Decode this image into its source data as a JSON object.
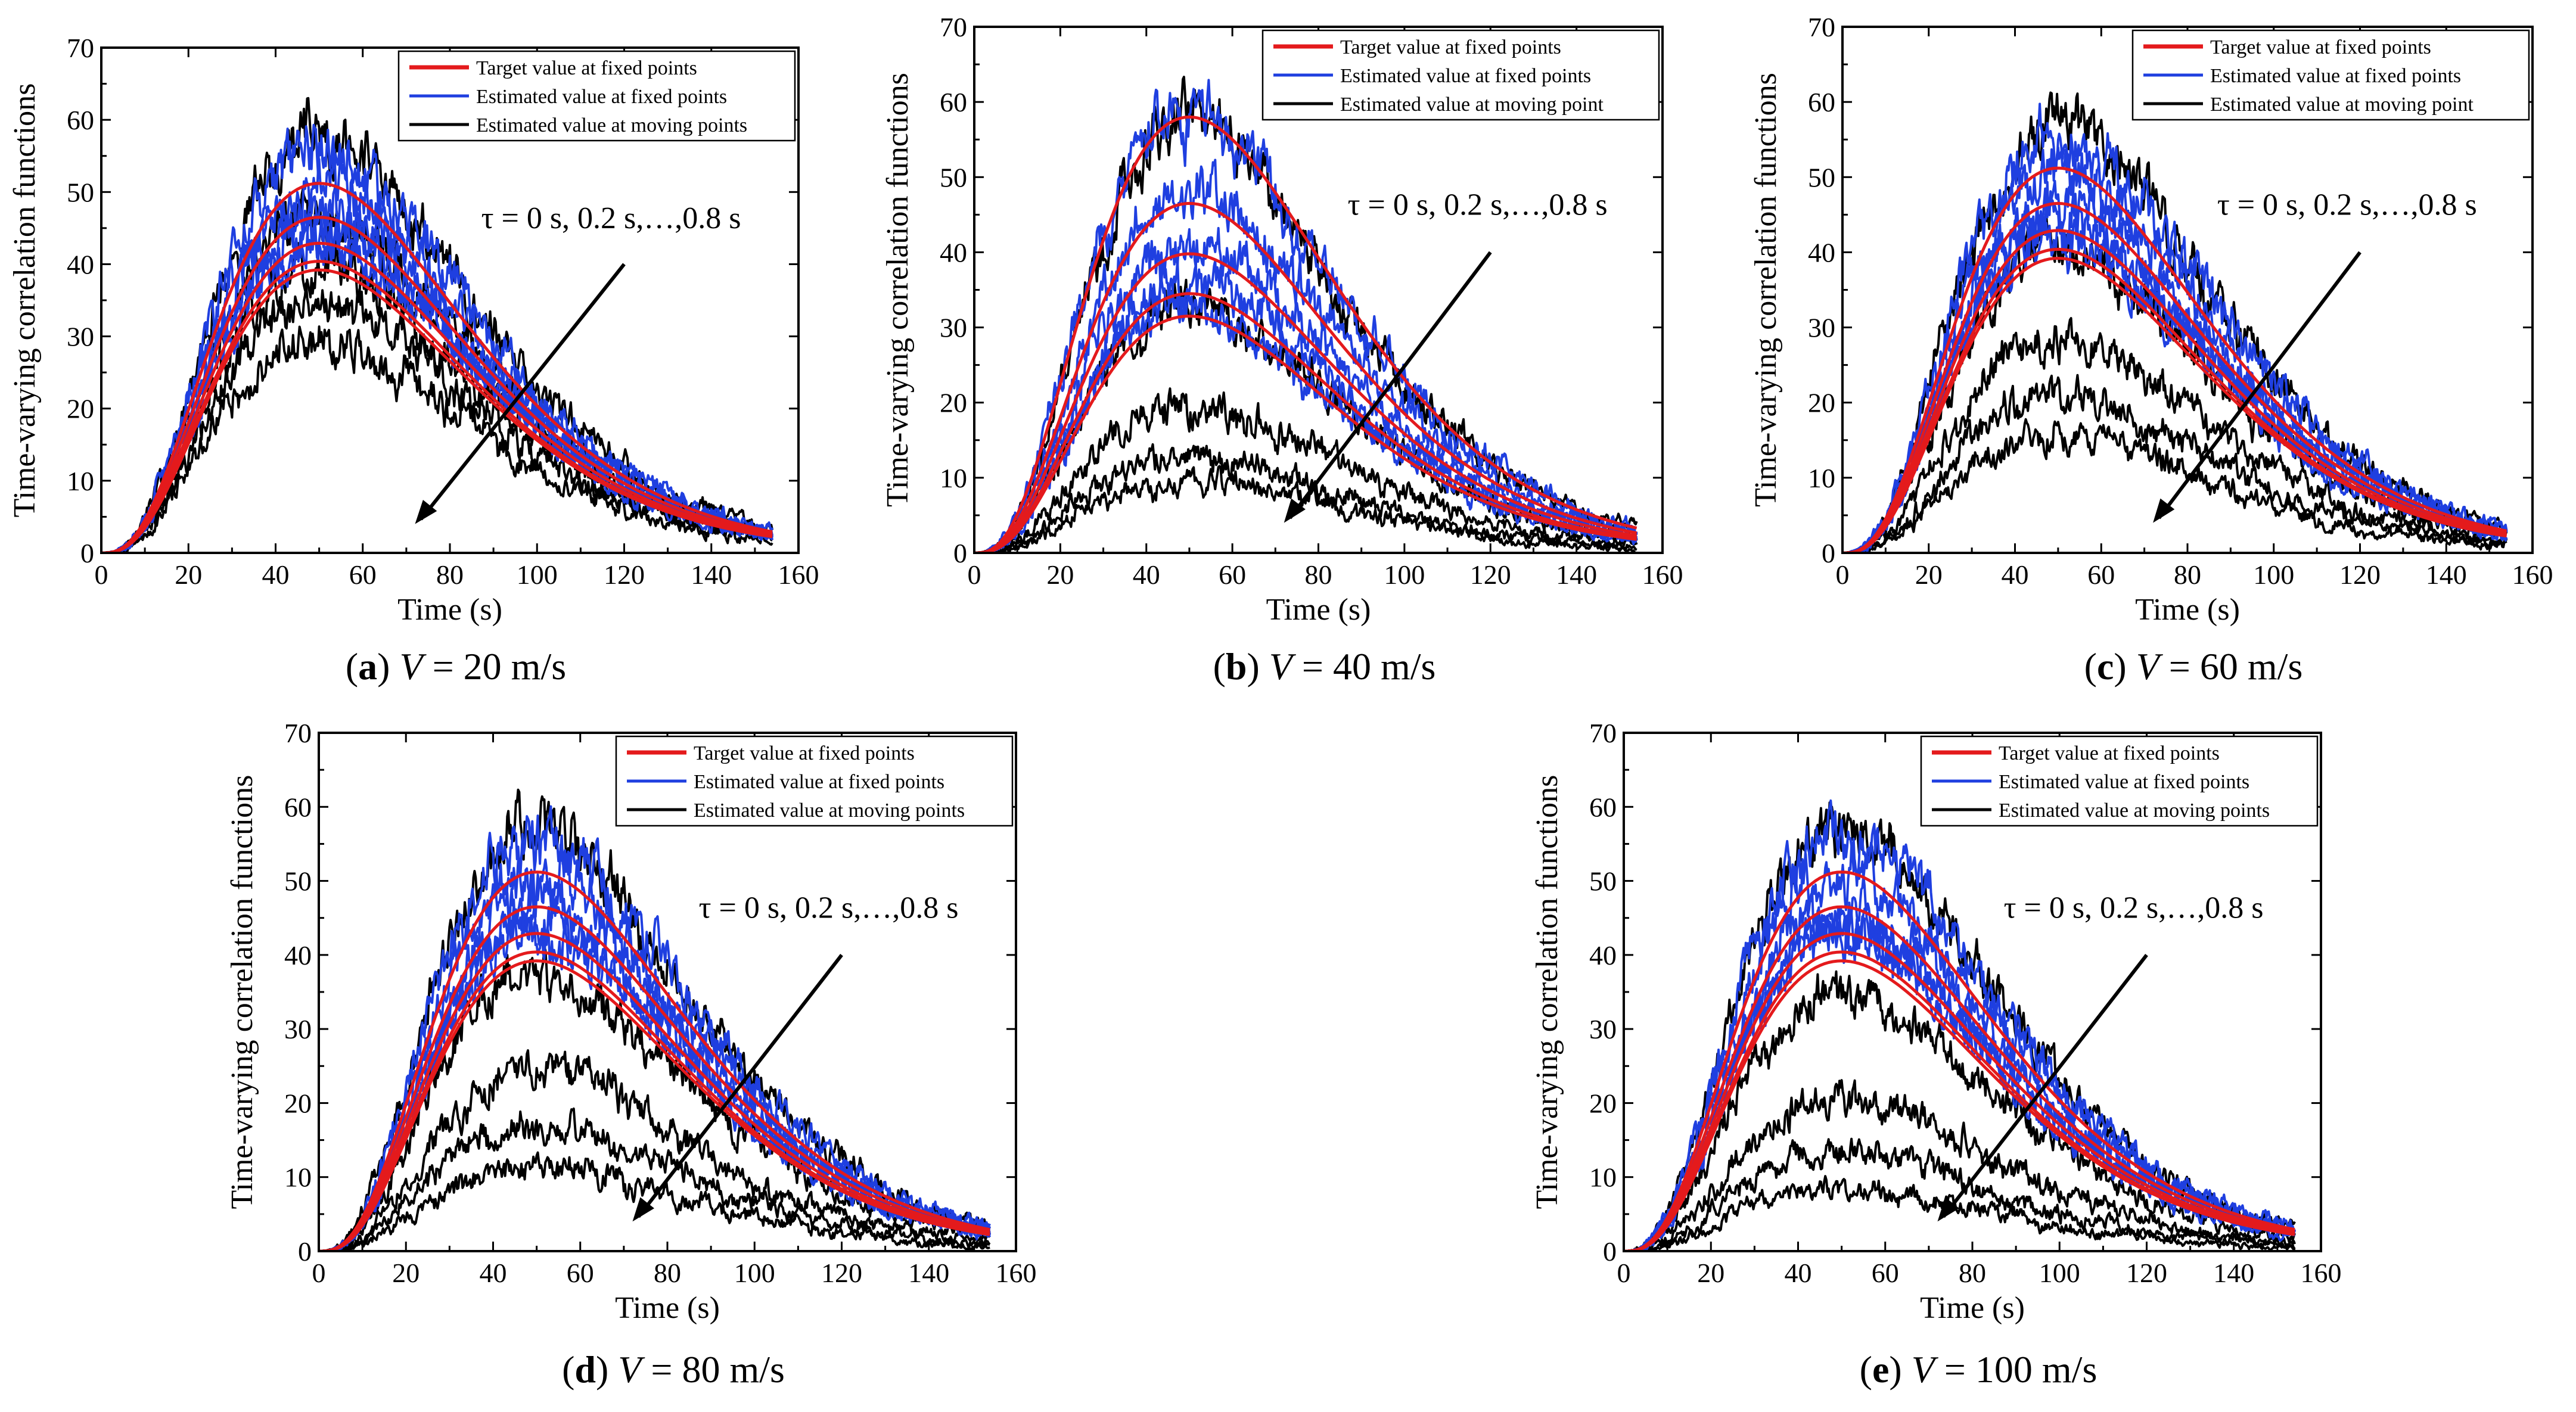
{
  "chart_data": [
    {
      "id": "a",
      "type": "line",
      "caption_letter": "a",
      "caption_var": "V",
      "caption_rest": " = 20 m/s",
      "xlabel": "Time (s)",
      "ylabel": "Time-varying correlation functions",
      "xlim": [
        0,
        160
      ],
      "ylim": [
        0,
        70
      ],
      "xticks": [
        "0",
        "20",
        "40",
        "60",
        "80",
        "100",
        "120",
        "140",
        "160"
      ],
      "yticks": [
        "0",
        "10",
        "20",
        "30",
        "40",
        "50",
        "60",
        "70"
      ],
      "legend": [
        "Target value at fixed points",
        "Estimated value at fixed points",
        "Estimated value at moving points"
      ],
      "annotation": "τ = 0 s, 0.2 s,…,0.8 s",
      "x_end": 154,
      "series": [
        {
          "name": "Target value at fixed points",
          "color": "#e41a1c",
          "peaks": [
            51.2,
            46.5,
            42.9,
            40.4,
            39.2
          ],
          "noise": 0
        },
        {
          "name": "Estimated value at fixed points",
          "color": "#1f3fe0",
          "peaks": [
            55.8,
            51.5,
            47.3,
            44.4,
            42.8
          ],
          "noise": 3
        },
        {
          "name": "Estimated value at moving points",
          "color": "#000000",
          "peaks": [
            57.5,
            46.5,
            40.0,
            35.0,
            29.5
          ],
          "noise": 3
        }
      ]
    },
    {
      "id": "b",
      "type": "line",
      "caption_letter": "b",
      "caption_var": "V",
      "caption_rest": " = 40 m/s",
      "xlabel": "Time (s)",
      "ylabel": "Time-varying correlation functions",
      "xlim": [
        0,
        160
      ],
      "ylim": [
        0,
        70
      ],
      "xticks": [
        "0",
        "20",
        "40",
        "60",
        "80",
        "100",
        "120",
        "140",
        "160"
      ],
      "yticks": [
        "0",
        "10",
        "20",
        "30",
        "40",
        "50",
        "60",
        "70"
      ],
      "legend": [
        "Target value at fixed points",
        "Estimated value at fixed points",
        "Estimated value at moving point"
      ],
      "annotation": "τ = 0 s, 0.2 s,…,0.8 s",
      "x_end": 154,
      "series": [
        {
          "name": "Target value at fixed points",
          "color": "#e41a1c",
          "peaks": [
            58.0,
            46.5,
            39.8,
            34.5,
            31.5
          ],
          "noise": 0
        },
        {
          "name": "Estimated value at fixed points",
          "color": "#1f3fe0",
          "peaks": [
            59.0,
            48.0,
            41.0,
            36.0,
            33.0
          ],
          "noise": 3
        },
        {
          "name": "Estimated value at moving point",
          "color": "#000000",
          "peaks": [
            57.5,
            32.5,
            20.0,
            13.0,
            9.5
          ],
          "noise": 3
        }
      ]
    },
    {
      "id": "c",
      "type": "line",
      "caption_letter": "c",
      "caption_var": "V",
      "caption_rest": " = 60 m/s",
      "xlabel": "Time (s)",
      "ylabel": "Time-varying correlation functions",
      "xlim": [
        0,
        160
      ],
      "ylim": [
        0,
        70
      ],
      "xticks": [
        "0",
        "20",
        "40",
        "60",
        "80",
        "100",
        "120",
        "140",
        "160"
      ],
      "yticks": [
        "0",
        "10",
        "20",
        "30",
        "40",
        "50",
        "60",
        "70"
      ],
      "legend": [
        "Target value at fixed points",
        "Estimated value at fixed points",
        "Estimated value at moving point"
      ],
      "annotation": "τ = 0 s, 0.2 s,…,0.8 s",
      "x_end": 154,
      "series": [
        {
          "name": "Target value at fixed points",
          "color": "#e41a1c",
          "peaks": [
            51.2,
            46.5,
            42.9,
            40.4,
            39.2
          ],
          "noise": 0
        },
        {
          "name": "Estimated value at fixed points",
          "color": "#1f3fe0",
          "peaks": [
            56.0,
            51.0,
            47.0,
            44.0,
            42.5
          ],
          "noise": 3
        },
        {
          "name": "Estimated value at moving point",
          "color": "#000000",
          "peaks": [
            57.5,
            40.0,
            28.5,
            21.0,
            16.0
          ],
          "noise": 3
        }
      ]
    },
    {
      "id": "d",
      "type": "line",
      "caption_letter": "d",
      "caption_var": "V",
      "caption_rest": " = 80 m/s",
      "xlabel": "Time (s)",
      "ylabel": "Time-varying correlation functions",
      "xlim": [
        0,
        160
      ],
      "ylim": [
        0,
        70
      ],
      "xticks": [
        "0",
        "20",
        "40",
        "60",
        "80",
        "100",
        "120",
        "140",
        "160"
      ],
      "yticks": [
        "0",
        "10",
        "20",
        "30",
        "40",
        "50",
        "60",
        "70"
      ],
      "legend": [
        "Target value at fixed points",
        "Estimated value at fixed points",
        "Estimated value at moving points"
      ],
      "annotation": "τ = 0 s, 0.2 s,…,0.8 s",
      "x_end": 154,
      "series": [
        {
          "name": "Target value at fixed points",
          "color": "#e41a1c",
          "peaks": [
            51.2,
            46.5,
            42.9,
            40.4,
            39.2
          ],
          "noise": 0
        },
        {
          "name": "Estimated value at fixed points",
          "color": "#1f3fe0",
          "peaks": [
            56.0,
            51.0,
            47.0,
            44.0,
            42.5
          ],
          "noise": 3
        },
        {
          "name": "Estimated value at moving points",
          "color": "#000000",
          "peaks": [
            57.5,
            37.5,
            24.5,
            17.0,
            11.5
          ],
          "noise": 3
        }
      ]
    },
    {
      "id": "e",
      "type": "line",
      "caption_letter": "e",
      "caption_var": "V",
      "caption_rest": " = 100 m/s",
      "xlabel": "Time (s)",
      "ylabel": "Time-varying correlation functions",
      "xlim": [
        0,
        160
      ],
      "ylim": [
        0,
        70
      ],
      "xticks": [
        "0",
        "20",
        "40",
        "60",
        "80",
        "100",
        "120",
        "140",
        "160"
      ],
      "yticks": [
        "0",
        "10",
        "20",
        "30",
        "40",
        "50",
        "60",
        "70"
      ],
      "legend": [
        "Target value at fixed points",
        "Estimated value at fixed points",
        "Estimated value at moving points"
      ],
      "annotation": "τ = 0 s, 0.2 s,…,0.8 s",
      "x_end": 154,
      "series": [
        {
          "name": "Target value at fixed points",
          "color": "#e41a1c",
          "peaks": [
            51.2,
            46.5,
            42.9,
            40.4,
            39.2
          ],
          "noise": 0
        },
        {
          "name": "Estimated value at fixed points",
          "color": "#1f3fe0",
          "peaks": [
            56.0,
            51.0,
            47.0,
            44.0,
            42.5
          ],
          "noise": 3
        },
        {
          "name": "Estimated value at moving points",
          "color": "#000000",
          "peaks": [
            57.5,
            34.5,
            21.0,
            13.5,
            8.5
          ],
          "noise": 3
        }
      ]
    }
  ]
}
